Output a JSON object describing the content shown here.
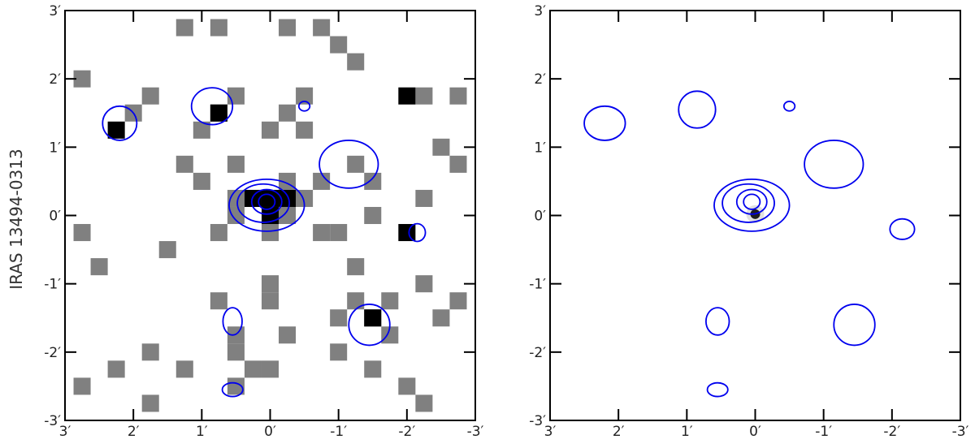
{
  "ylabel": "IRAS 13494-0313",
  "contour_color": "#0000ee",
  "chart_data": [
    {
      "type": "heatmap",
      "panel": "left",
      "title": "",
      "xlabel": "",
      "ylabel": "IRAS 13494-0313",
      "xlim": [
        3,
        -3
      ],
      "ylim": [
        -3,
        3
      ],
      "x_ticks": [
        "3′",
        "2′",
        "1′",
        "0′",
        "-1′",
        "-2′",
        "-3′"
      ],
      "y_ticks": [
        "3′",
        "2′",
        "1′",
        "0′",
        "-1′",
        "-2′",
        "-3′"
      ],
      "pixel_size_arcmin": 0.25,
      "gray_pixels": [
        [
          1.25,
          2.75
        ],
        [
          0.75,
          2.75
        ],
        [
          -0.25,
          2.75
        ],
        [
          -0.75,
          2.75
        ],
        [
          -1.0,
          2.5
        ],
        [
          -1.25,
          2.25
        ],
        [
          2.75,
          2.0
        ],
        [
          1.75,
          1.75
        ],
        [
          0.5,
          1.75
        ],
        [
          -0.5,
          1.75
        ],
        [
          -2.25,
          1.75
        ],
        [
          -2.75,
          1.75
        ],
        [
          2.0,
          1.5
        ],
        [
          0.75,
          1.5
        ],
        [
          -0.25,
          1.5
        ],
        [
          1.0,
          1.25
        ],
        [
          0.0,
          1.25
        ],
        [
          -0.5,
          1.25
        ],
        [
          -2.5,
          1.0
        ],
        [
          1.25,
          0.75
        ],
        [
          0.5,
          0.75
        ],
        [
          -1.25,
          0.75
        ],
        [
          -2.75,
          0.75
        ],
        [
          1.0,
          0.5
        ],
        [
          -0.25,
          0.5
        ],
        [
          -0.75,
          0.5
        ],
        [
          -1.5,
          0.5
        ],
        [
          0.5,
          0.25
        ],
        [
          -0.5,
          0.25
        ],
        [
          -2.25,
          0.25
        ],
        [
          0.5,
          0.0
        ],
        [
          -0.25,
          0.0
        ],
        [
          -1.5,
          0.0
        ],
        [
          2.75,
          -0.25
        ],
        [
          0.75,
          -0.25
        ],
        [
          0.0,
          -0.25
        ],
        [
          -0.75,
          -0.25
        ],
        [
          -1.0,
          -0.25
        ],
        [
          1.5,
          -0.5
        ],
        [
          2.5,
          -0.75
        ],
        [
          -1.25,
          -0.75
        ],
        [
          0.0,
          -1.0
        ],
        [
          -2.25,
          -1.0
        ],
        [
          0.75,
          -1.25
        ],
        [
          0.0,
          -1.25
        ],
        [
          -1.25,
          -1.25
        ],
        [
          -1.75,
          -1.25
        ],
        [
          -2.75,
          -1.25
        ],
        [
          -1.0,
          -1.5
        ],
        [
          -1.5,
          -1.5
        ],
        [
          -2.5,
          -1.5
        ],
        [
          0.5,
          -1.75
        ],
        [
          -0.25,
          -1.75
        ],
        [
          -1.75,
          -1.75
        ],
        [
          1.75,
          -2.0
        ],
        [
          0.5,
          -2.0
        ],
        [
          -1.0,
          -2.0
        ],
        [
          1.25,
          -2.25
        ],
        [
          2.25,
          -2.25
        ],
        [
          0.25,
          -2.25
        ],
        [
          0.0,
          -2.25
        ],
        [
          -1.5,
          -2.25
        ],
        [
          2.75,
          -2.5
        ],
        [
          0.5,
          -2.5
        ],
        [
          -2.0,
          -2.5
        ],
        [
          1.75,
          -2.75
        ],
        [
          -2.25,
          -2.75
        ]
      ],
      "black_pixels": [
        [
          2.25,
          1.25
        ],
        [
          0.75,
          1.5
        ],
        [
          0.25,
          0.25
        ],
        [
          0.0,
          0.25
        ],
        [
          -0.25,
          0.25
        ],
        [
          0.0,
          0.0
        ],
        [
          -2.0,
          1.75
        ],
        [
          -2.0,
          -0.25
        ],
        [
          -1.5,
          -1.5
        ]
      ],
      "contours": [
        {
          "cx": 0.05,
          "cy": 0.15,
          "rx": 0.55,
          "ry": 0.38
        },
        {
          "cx": 0.1,
          "cy": 0.18,
          "rx": 0.38,
          "ry": 0.28
        },
        {
          "cx": 0.05,
          "cy": 0.2,
          "rx": 0.22,
          "ry": 0.18
        },
        {
          "cx": 0.05,
          "cy": 0.2,
          "rx": 0.12,
          "ry": 0.11
        },
        {
          "cx": 2.2,
          "cy": 1.35,
          "rx": 0.25,
          "ry": 0.25
        },
        {
          "cx": 0.85,
          "cy": 1.6,
          "rx": 0.3,
          "ry": 0.27
        },
        {
          "cx": -0.5,
          "cy": 1.6,
          "rx": 0.08,
          "ry": 0.07
        },
        {
          "cx": -1.15,
          "cy": 0.75,
          "rx": 0.43,
          "ry": 0.35
        },
        {
          "cx": -2.15,
          "cy": -0.25,
          "rx": 0.12,
          "ry": 0.13
        },
        {
          "cx": 0.55,
          "cy": -1.55,
          "rx": 0.14,
          "ry": 0.2
        },
        {
          "cx": -1.45,
          "cy": -1.6,
          "rx": 0.3,
          "ry": 0.3
        },
        {
          "cx": 0.55,
          "cy": -2.55,
          "rx": 0.15,
          "ry": 0.1
        }
      ]
    },
    {
      "type": "heatmap",
      "panel": "right",
      "title": "",
      "xlabel": "",
      "ylabel": "",
      "xlim": [
        3,
        -3
      ],
      "ylim": [
        -3,
        3
      ],
      "x_ticks": [
        "3′",
        "2′",
        "1′",
        "0′",
        "-1′",
        "-2′",
        "-3′"
      ],
      "y_ticks": [
        "3′",
        "2′",
        "1′",
        "0′",
        "-1′",
        "-2′",
        "-3′"
      ],
      "source_point": [
        0.0,
        0.02
      ],
      "contours": [
        {
          "cx": 0.05,
          "cy": 0.15,
          "rx": 0.55,
          "ry": 0.38
        },
        {
          "cx": 0.1,
          "cy": 0.18,
          "rx": 0.38,
          "ry": 0.28
        },
        {
          "cx": 0.05,
          "cy": 0.2,
          "rx": 0.22,
          "ry": 0.18
        },
        {
          "cx": 0.05,
          "cy": 0.2,
          "rx": 0.12,
          "ry": 0.11
        },
        {
          "cx": 2.2,
          "cy": 1.35,
          "rx": 0.3,
          "ry": 0.25
        },
        {
          "cx": 0.85,
          "cy": 1.55,
          "rx": 0.27,
          "ry": 0.27
        },
        {
          "cx": -0.5,
          "cy": 1.6,
          "rx": 0.08,
          "ry": 0.07
        },
        {
          "cx": -1.15,
          "cy": 0.75,
          "rx": 0.43,
          "ry": 0.35
        },
        {
          "cx": -2.15,
          "cy": -0.2,
          "rx": 0.18,
          "ry": 0.15
        },
        {
          "cx": 0.55,
          "cy": -1.55,
          "rx": 0.17,
          "ry": 0.2
        },
        {
          "cx": -1.45,
          "cy": -1.6,
          "rx": 0.3,
          "ry": 0.3
        },
        {
          "cx": 0.55,
          "cy": -2.55,
          "rx": 0.15,
          "ry": 0.1
        }
      ]
    }
  ]
}
